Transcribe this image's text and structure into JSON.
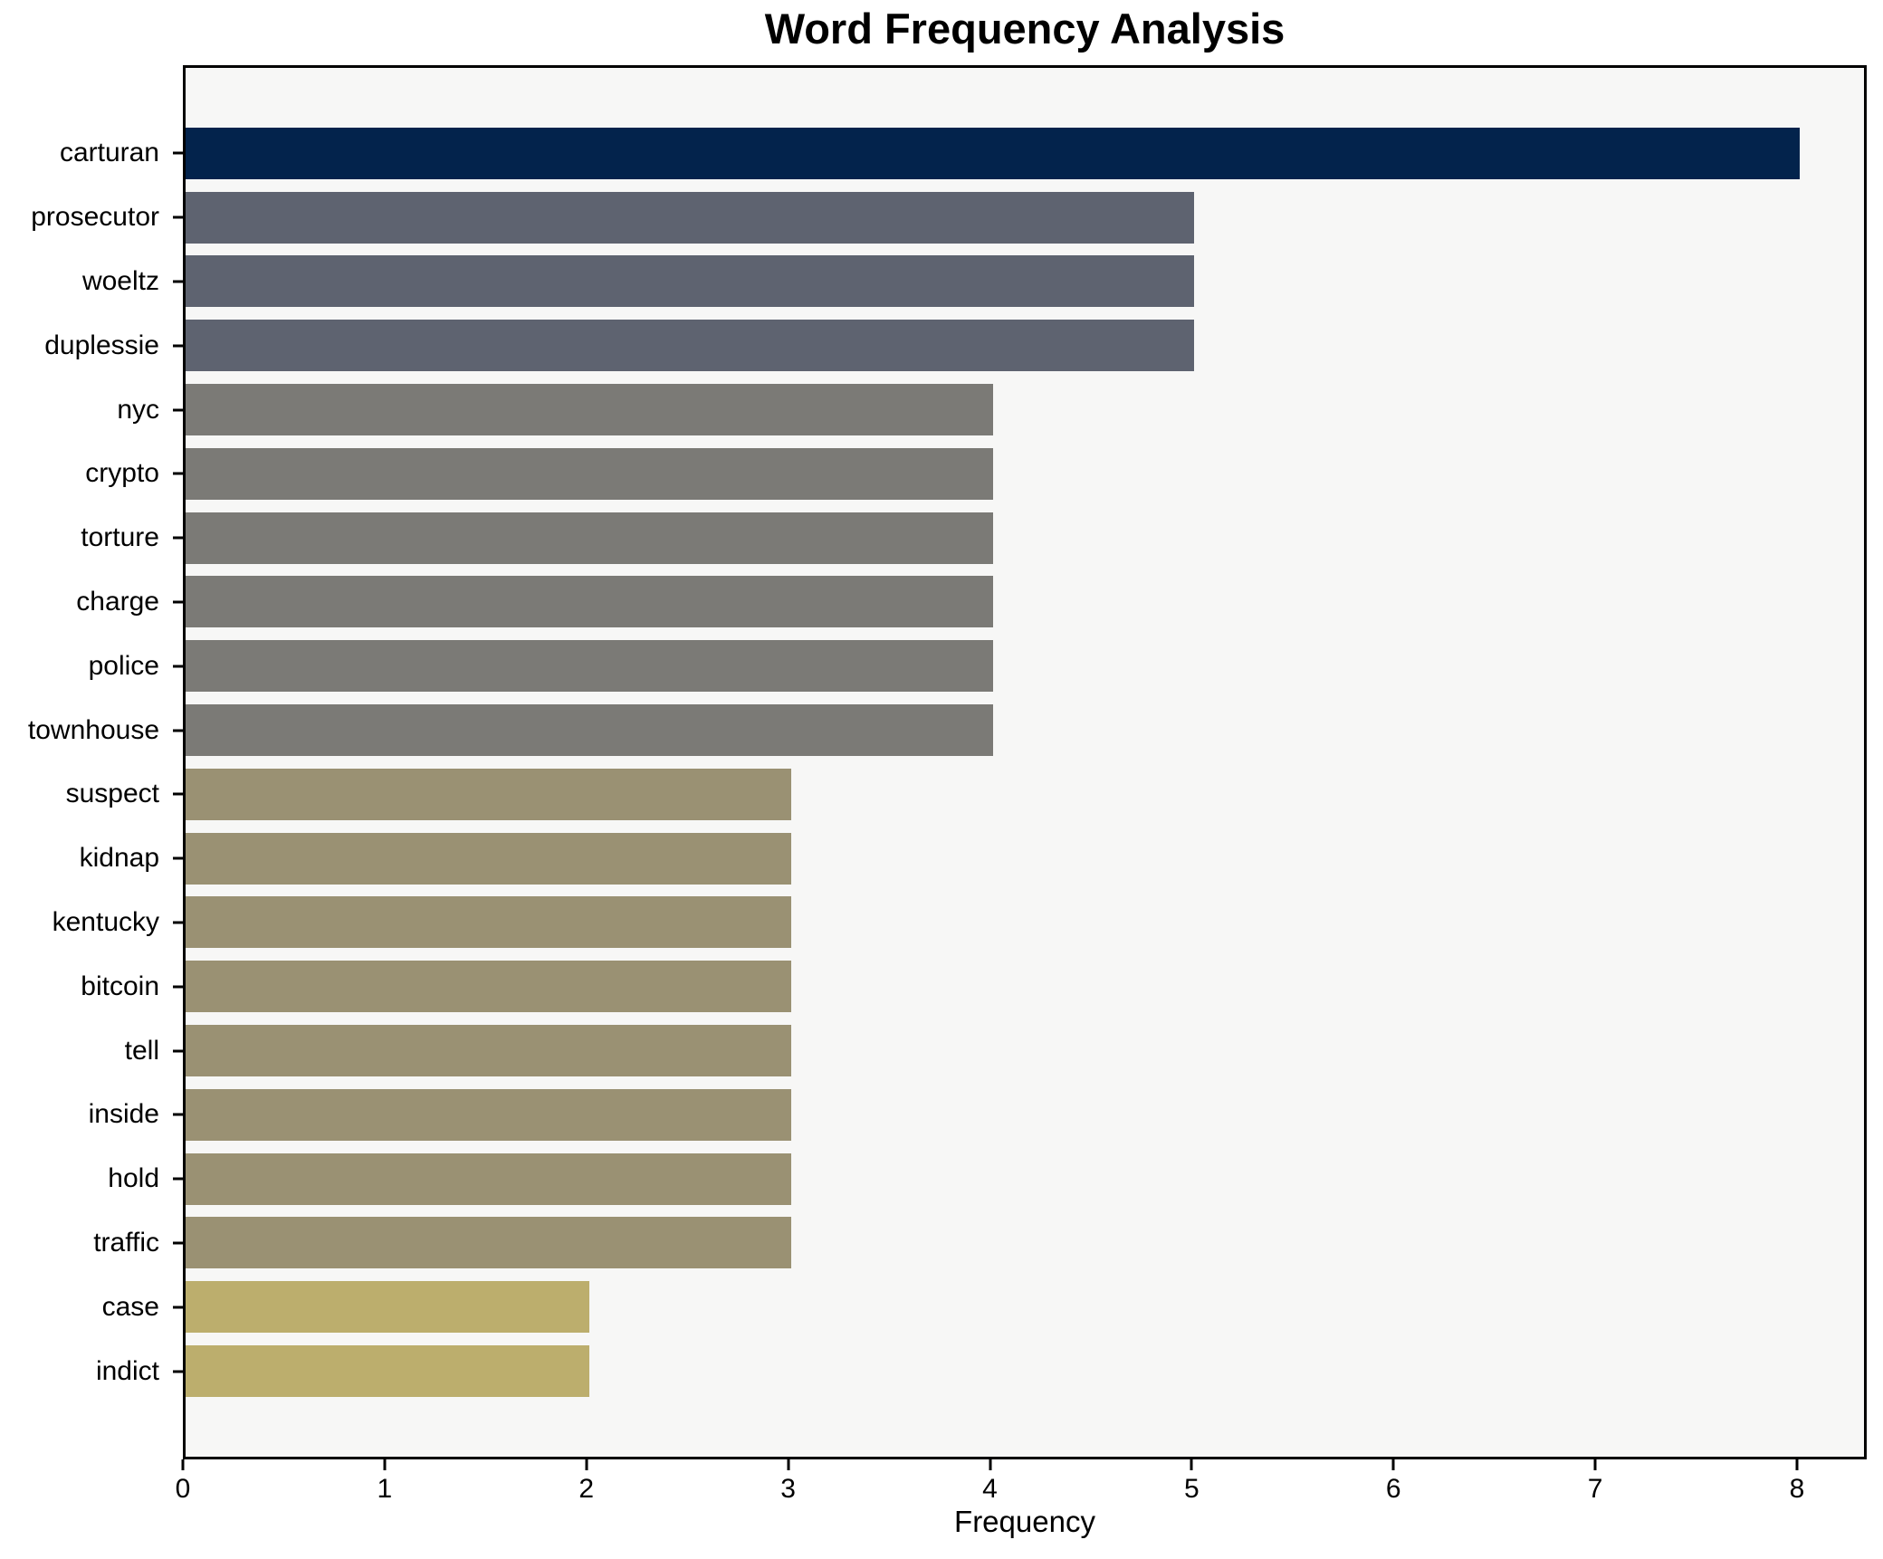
{
  "chart_data": {
    "type": "bar",
    "orientation": "horizontal",
    "title": "Word Frequency Analysis",
    "xlabel": "Frequency",
    "ylabel": "",
    "categories": [
      "carturan",
      "prosecutor",
      "woeltz",
      "duplessie",
      "nyc",
      "crypto",
      "torture",
      "charge",
      "police",
      "townhouse",
      "suspect",
      "kidnap",
      "kentucky",
      "bitcoin",
      "tell",
      "inside",
      "hold",
      "traffic",
      "case",
      "indict"
    ],
    "values": [
      8,
      5,
      5,
      5,
      4,
      4,
      4,
      4,
      4,
      4,
      3,
      3,
      3,
      3,
      3,
      3,
      3,
      3,
      2,
      2
    ],
    "bar_colors": [
      "#03234c",
      "#5e6370",
      "#5e6370",
      "#5e6370",
      "#7b7a76",
      "#7b7a76",
      "#7b7a76",
      "#7b7a76",
      "#7b7a76",
      "#7b7a76",
      "#9a9173",
      "#9a9173",
      "#9a9173",
      "#9a9173",
      "#9a9173",
      "#9a9173",
      "#9a9173",
      "#9a9173",
      "#bcae6d",
      "#bcae6d"
    ],
    "xticks": [
      0,
      1,
      2,
      3,
      4,
      5,
      6,
      7,
      8
    ],
    "xlim": [
      0,
      8.34
    ],
    "grid": false,
    "legend": "none",
    "plot_background": "#f7f7f6",
    "figure_background": "#ffffff",
    "spine_color": "#000000"
  }
}
